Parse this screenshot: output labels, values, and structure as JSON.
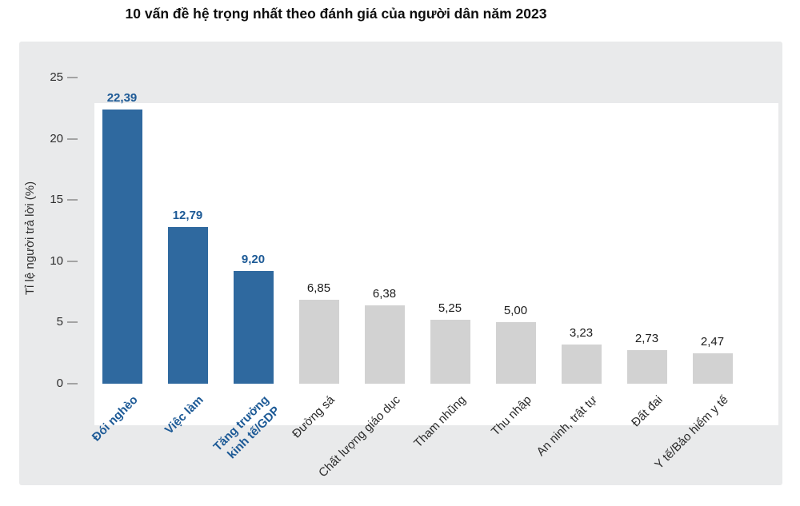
{
  "title": "10 vấn đề hệ trọng nhất theo đánh giá của người dân năm 2023",
  "chart_data": {
    "type": "bar",
    "title": "10 vấn đề hệ trọng nhất theo đánh giá của người dân năm 2023",
    "xlabel": "",
    "ylabel": "Tỉ lệ người trả lời (%)",
    "ylim": [
      0,
      25
    ],
    "yticks": [
      0,
      5,
      10,
      15,
      20,
      25
    ],
    "grid": false,
    "legend": "none",
    "decimal_separator": ",",
    "categories": [
      "Đói nghèo",
      "Việc làm",
      "Tăng trưởng kinh tế/GDP",
      "Đường sá",
      "Chất lượng giáo dục",
      "Tham nhũng",
      "Thu nhập",
      "An ninh, trật tự",
      "Đất đai",
      "Y tế/Bảo hiểm y tế"
    ],
    "category_display": [
      "Đói nghèo",
      "Việc làm",
      "Tăng trưởng\nkinh tế/GDP",
      "Đường sá",
      "Chất lượng giáo dục",
      "Tham nhũng",
      "Thu nhập",
      "An ninh, trật tự",
      "Đất đai",
      "Y tế/Bảo hiểm y tế"
    ],
    "values": [
      22.39,
      12.79,
      9.2,
      6.85,
      6.38,
      5.25,
      5.0,
      3.23,
      2.73,
      2.47
    ],
    "value_labels": [
      "22,39",
      "12,79",
      "9,20",
      "6,85",
      "6,38",
      "5,25",
      "5,00",
      "3,23",
      "2,73",
      "2,47"
    ],
    "highlight_first_n": 3,
    "colors": {
      "highlight_bar": "#2f699f",
      "default_bar": "#d2d2d2",
      "highlight_text": "#1d5a96",
      "default_text": "#1c1c1c",
      "panel_bg": "#e9eaeb",
      "plot_bg": "#ffffff",
      "tick_text": "#2e2e2e",
      "tick_dash": "#a3a3a3"
    }
  }
}
